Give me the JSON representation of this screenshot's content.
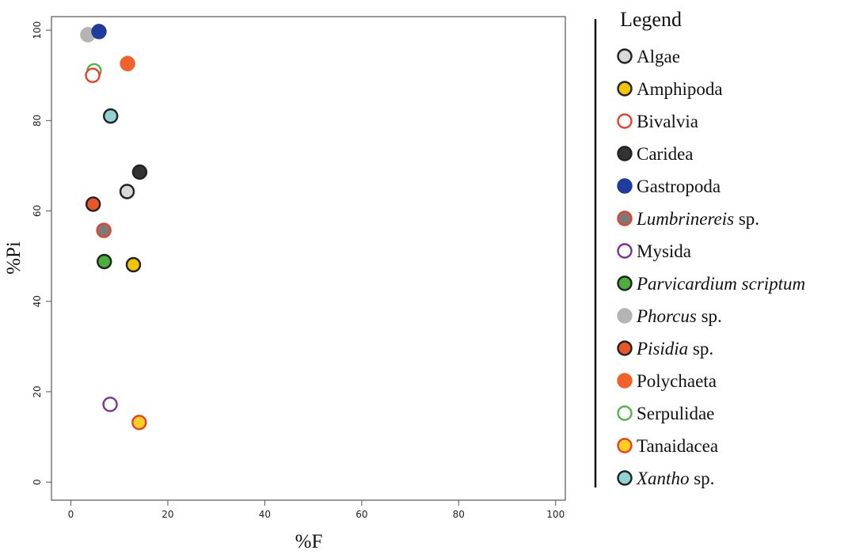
{
  "chart_data": {
    "type": "scatter",
    "xlabel": "%F",
    "ylabel": "%Pi",
    "xlim": [
      -4,
      102
    ],
    "ylim": [
      -4,
      103
    ],
    "x_ticks": [
      "0",
      "20",
      "40",
      "60",
      "80",
      "100"
    ],
    "y_ticks": [
      "0",
      "20",
      "40",
      "60",
      "80",
      "100"
    ],
    "grid": false,
    "legend_position": "right",
    "legend_title": "Legend",
    "legend": [
      {
        "name": "Algae",
        "italic": false,
        "fill": "#d9d9d9",
        "stroke": "#222222"
      },
      {
        "name": "Amphipoda",
        "italic": false,
        "fill": "#f5c400",
        "stroke": "#222222"
      },
      {
        "name": "Bivalvia",
        "italic": false,
        "fill": "#ffffff",
        "stroke": "#e8402a"
      },
      {
        "name": "Caridea",
        "italic": false,
        "fill": "#333333",
        "stroke": "#222222"
      },
      {
        "name": "Gastropoda",
        "italic": false,
        "fill": "#1f3c9c",
        "stroke": "#1f3c9c"
      },
      {
        "name": "Lumbrinereis",
        "suffix": " sp.",
        "italic": true,
        "fill": "#7a7a7a",
        "stroke": "#e8402a"
      },
      {
        "name": "Mysida",
        "italic": false,
        "fill": "#ffffff",
        "stroke": "#7b3294"
      },
      {
        "name": "Parvicardium scriptum",
        "italic": true,
        "fill": "#4caf3c",
        "stroke": "#222222"
      },
      {
        "name": "Phorcus",
        "suffix": " sp.",
        "italic": true,
        "fill": "#b4b4b4",
        "stroke": "#b4b4b4"
      },
      {
        "name": "Pisidia",
        "suffix": " sp.",
        "italic": true,
        "fill": "#e8562a",
        "stroke": "#222222"
      },
      {
        "name": "Polychaeta",
        "italic": false,
        "fill": "#f0622a",
        "stroke": "#f0622a"
      },
      {
        "name": "Serpulidae",
        "italic": false,
        "fill": "#ffffff",
        "stroke": "#55b44a"
      },
      {
        "name": "Tanaidacea",
        "italic": false,
        "fill": "#f7d020",
        "stroke": "#e8402a"
      },
      {
        "name": "Xantho",
        "suffix": " sp.",
        "italic": true,
        "fill": "#8fd3d3",
        "stroke": "#222222"
      }
    ],
    "points": [
      {
        "series": "Serpulidae",
        "x": 4.8,
        "y": 91.0
      },
      {
        "series": "Phorcus",
        "x": 3.5,
        "y": 99.0
      },
      {
        "series": "Gastropoda",
        "x": 5.8,
        "y": 99.7
      },
      {
        "series": "Bivalvia",
        "x": 4.5,
        "y": 90.0
      },
      {
        "series": "Polychaeta",
        "x": 11.7,
        "y": 92.6
      },
      {
        "series": "Xantho",
        "x": 8.2,
        "y": 81.0
      },
      {
        "series": "Caridea",
        "x": 14.2,
        "y": 68.6
      },
      {
        "series": "Algae",
        "x": 11.6,
        "y": 64.3
      },
      {
        "series": "Pisidia",
        "x": 4.6,
        "y": 61.5
      },
      {
        "series": "Lumbrinereis",
        "x": 6.8,
        "y": 55.7
      },
      {
        "series": "Parvicardium scriptum",
        "x": 6.9,
        "y": 48.8
      },
      {
        "series": "Amphipoda",
        "x": 12.9,
        "y": 48.1
      },
      {
        "series": "Mysida",
        "x": 8.1,
        "y": 17.2
      },
      {
        "series": "Tanaidacea",
        "x": 14.1,
        "y": 13.2
      }
    ]
  }
}
